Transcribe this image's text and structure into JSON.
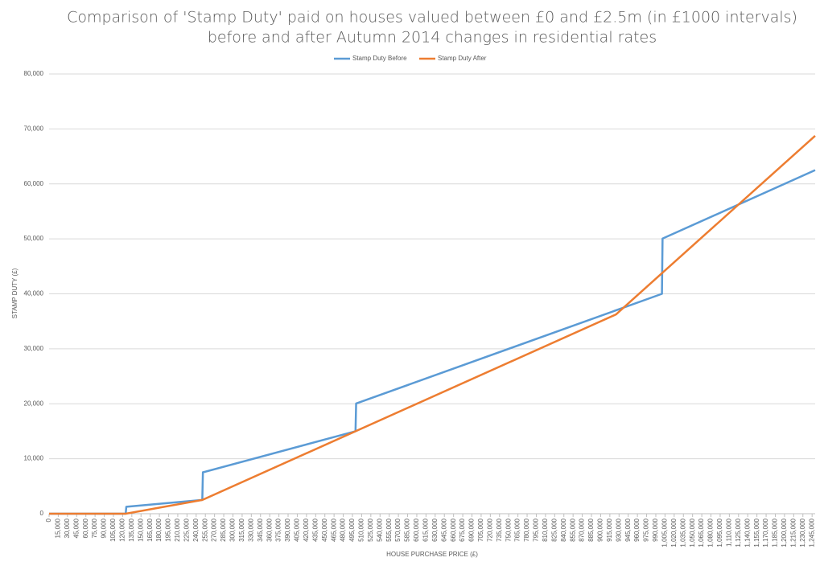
{
  "chart_data": {
    "type": "line",
    "title": [
      "Comparison of 'Stamp Duty' paid on houses valued between £0 and £2.5m (in £1000 intervals)",
      "before and after Autumn 2014 changes in residential rates"
    ],
    "x_label": "HOUSE PURCHASE PRICE (£)",
    "y_label": "STAMP DUTY (£)",
    "legend": "top",
    "grid": true,
    "xlim": [
      0,
      1250000
    ],
    "ylim": [
      0,
      80000
    ],
    "yticks": [
      0,
      {
        "value": 10000,
        "label": "10,000"
      },
      {
        "value": 20000,
        "label": "20,000"
      },
      {
        "value": 30000,
        "label": "30,000"
      },
      {
        "value": 40000,
        "label": "40,000"
      },
      {
        "value": 50000,
        "label": "50,000"
      },
      {
        "value": 60000,
        "label": "60,000"
      },
      {
        "value": 70000,
        "label": "70,000"
      },
      {
        "value": 80000,
        "label": "80,000"
      }
    ],
    "xticks": [
      0,
      {
        "value": 15000,
        "label": "15,000"
      },
      {
        "value": 30000,
        "label": "30,000"
      },
      {
        "value": 45000,
        "label": "45,000"
      },
      {
        "value": 60000,
        "label": "60,000"
      },
      {
        "value": 75000,
        "label": "75,000"
      },
      {
        "value": 90000,
        "label": "90,000"
      },
      {
        "value": 105000,
        "label": "105,000"
      },
      {
        "value": 120000,
        "label": "120,000"
      },
      {
        "value": 135000,
        "label": "135,000"
      },
      {
        "value": 150000,
        "label": "150,000"
      },
      {
        "value": 165000,
        "label": "165,000"
      },
      {
        "value": 180000,
        "label": "180,000"
      },
      {
        "value": 195000,
        "label": "195,000"
      },
      {
        "value": 210000,
        "label": "210,000"
      },
      {
        "value": 225000,
        "label": "225,000"
      },
      {
        "value": 240000,
        "label": "240,000"
      },
      {
        "value": 255000,
        "label": "255,000"
      },
      {
        "value": 270000,
        "label": "270,000"
      },
      {
        "value": 285000,
        "label": "285,000"
      },
      {
        "value": 300000,
        "label": "300,000"
      },
      {
        "value": 315000,
        "label": "315,000"
      },
      {
        "value": 330000,
        "label": "330,000"
      },
      {
        "value": 345000,
        "label": "345,000"
      },
      {
        "value": 360000,
        "label": "360,000"
      },
      {
        "value": 375000,
        "label": "375,000"
      },
      {
        "value": 390000,
        "label": "390,000"
      },
      {
        "value": 405000,
        "label": "405,000"
      },
      {
        "value": 420000,
        "label": "420,000"
      },
      {
        "value": 435000,
        "label": "435,000"
      },
      {
        "value": 450000,
        "label": "450,000"
      },
      {
        "value": 465000,
        "label": "465,000"
      },
      {
        "value": 480000,
        "label": "480,000"
      },
      {
        "value": 495000,
        "label": "495,000"
      },
      {
        "value": 510000,
        "label": "510,000"
      },
      {
        "value": 525000,
        "label": "525,000"
      },
      {
        "value": 540000,
        "label": "540,000"
      },
      {
        "value": 555000,
        "label": "555,000"
      },
      {
        "value": 570000,
        "label": "570,000"
      },
      {
        "value": 585000,
        "label": "585,000"
      },
      {
        "value": 600000,
        "label": "600,000"
      },
      {
        "value": 615000,
        "label": "615,000"
      },
      {
        "value": 630000,
        "label": "630,000"
      },
      {
        "value": 645000,
        "label": "645,000"
      },
      {
        "value": 660000,
        "label": "660,000"
      },
      {
        "value": 675000,
        "label": "675,000"
      },
      {
        "value": 690000,
        "label": "690,000"
      },
      {
        "value": 705000,
        "label": "705,000"
      },
      {
        "value": 720000,
        "label": "720,000"
      },
      {
        "value": 735000,
        "label": "735,000"
      },
      {
        "value": 750000,
        "label": "750,000"
      },
      {
        "value": 765000,
        "label": "765,000"
      },
      {
        "value": 780000,
        "label": "780,000"
      },
      {
        "value": 795000,
        "label": "795,000"
      },
      {
        "value": 810000,
        "label": "810,000"
      },
      {
        "value": 825000,
        "label": "825,000"
      },
      {
        "value": 840000,
        "label": "840,000"
      },
      {
        "value": 855000,
        "label": "855,000"
      },
      {
        "value": 870000,
        "label": "870,000"
      },
      {
        "value": 885000,
        "label": "885,000"
      },
      {
        "value": 900000,
        "label": "900,000"
      },
      {
        "value": 915000,
        "label": "915,000"
      },
      {
        "value": 930000,
        "label": "930,000"
      },
      {
        "value": 945000,
        "label": "945,000"
      },
      {
        "value": 960000,
        "label": "960,000"
      },
      {
        "value": 975000,
        "label": "975,000"
      },
      {
        "value": 990000,
        "label": "990,000"
      },
      {
        "value": 1005000,
        "label": "1,005,000"
      },
      {
        "value": 1020000,
        "label": "1,020,000"
      },
      {
        "value": 1035000,
        "label": "1,035,000"
      },
      {
        "value": 1050000,
        "label": "1,050,000"
      },
      {
        "value": 1065000,
        "label": "1,065,000"
      },
      {
        "value": 1080000,
        "label": "1,080,000"
      },
      {
        "value": 1095000,
        "label": "1,095,000"
      },
      {
        "value": 1110000,
        "label": "1,110,000"
      },
      {
        "value": 1125000,
        "label": "1,125,000"
      },
      {
        "value": 1140000,
        "label": "1,140,000"
      },
      {
        "value": 1155000,
        "label": "1,155,000"
      },
      {
        "value": 1170000,
        "label": "1,170,000"
      },
      {
        "value": 1185000,
        "label": "1,185,000"
      },
      {
        "value": 1200000,
        "label": "1,200,000"
      },
      {
        "value": 1215000,
        "label": "1,215,000"
      },
      {
        "value": 1230000,
        "label": "1,230,000"
      },
      {
        "value": 1245000,
        "label": "1,245,000"
      }
    ],
    "series": [
      {
        "name": "Stamp Duty Before",
        "color": "#5b9bd5",
        "x": [
          0,
          125000,
          126000,
          250000,
          251000,
          500000,
          501000,
          1000000,
          1001000,
          1250000
        ],
        "values": [
          0,
          0,
          1260,
          2500,
          7530,
          15000,
          20040,
          40000,
          50050,
          62500
        ]
      },
      {
        "name": "Stamp Duty After",
        "color": "#ed7d31",
        "x": [
          0,
          125000,
          250000,
          925000,
          1250000
        ],
        "values": [
          0,
          0,
          2500,
          36250,
          68750
        ]
      }
    ]
  }
}
